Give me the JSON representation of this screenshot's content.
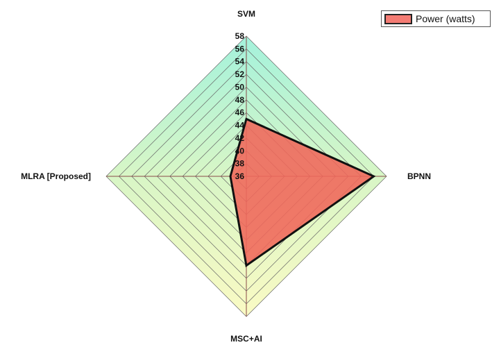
{
  "chart_data": {
    "type": "radar",
    "axes": [
      "SVM",
      "BPNN",
      "MSC+AI",
      "MLRA [Proposed]"
    ],
    "series": [
      {
        "name": "Power (watts)",
        "values": [
          45,
          56,
          50,
          38.5
        ]
      }
    ],
    "rlim": [
      36,
      58
    ],
    "ticks": [
      36,
      38,
      40,
      42,
      44,
      46,
      48,
      50,
      52,
      54,
      56,
      58
    ],
    "grid": true,
    "legend": "top-right"
  },
  "colors": {
    "series_fill": "#f0665a",
    "series_stroke": "#111111",
    "legend_swatch": "#f47c74",
    "grid_line": "#666666",
    "gradient_top": "#a4f2dc",
    "gradient_mid": "#d8f6c6",
    "gradient_bottom": "#fafac4"
  }
}
